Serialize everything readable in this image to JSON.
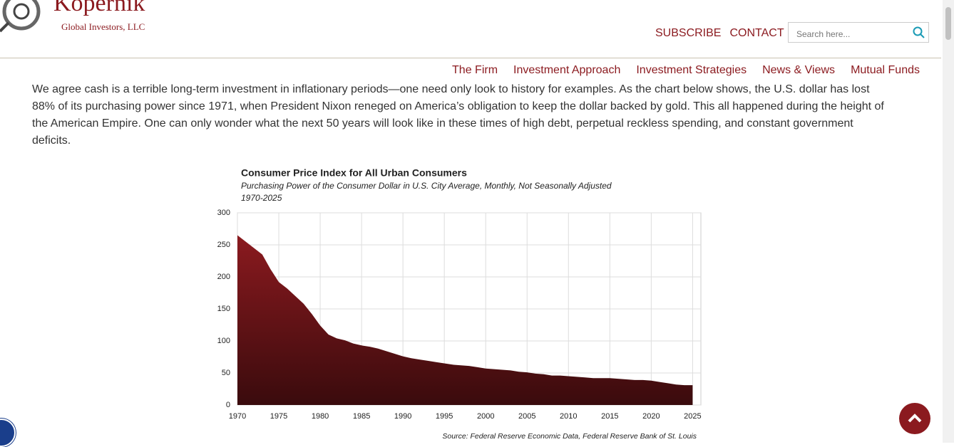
{
  "header": {
    "brand": "Kopernik",
    "tagline": "Global Investors, LLC",
    "top_links": [
      "SUBSCRIBE",
      "CONTACT"
    ],
    "search_placeholder": "Search here..."
  },
  "nav": [
    "The Firm",
    "Investment Approach",
    "Investment Strategies",
    "News & Views",
    "Mutual Funds"
  ],
  "paragraph": "We agree cash is a terrible long-term investment in inflationary periods—one need only look to history for examples. As the chart below shows, the U.S. dollar has lost 88% of its purchasing power since 1971, when President Nixon reneged on America’s obligation to keep the dollar backed by gold. This all happened during the height of the American Empire. One can only wonder what the next 50 years will look like in these times of high debt, perpetual reckless spending, and constant government deficits.",
  "chart_data": {
    "type": "area",
    "title": "Consumer Price Index for All Urban Consumers",
    "subtitle": "Purchasing Power of the Consumer Dollar in U.S. City Average, Monthly, Not Seasonally Adjusted",
    "period": "1970-2025",
    "source": "Source: Federal Reserve Economic Data, Federal Reserve Bank of St. Louis",
    "color": "#8b1a1f",
    "grid": true,
    "x": [
      1970,
      1971,
      1972,
      1973,
      1974,
      1975,
      1976,
      1977,
      1978,
      1979,
      1980,
      1981,
      1982,
      1983,
      1984,
      1985,
      1986,
      1987,
      1988,
      1989,
      1990,
      1991,
      1992,
      1993,
      1994,
      1995,
      1996,
      1997,
      1998,
      1999,
      2000,
      2001,
      2002,
      2003,
      2004,
      2005,
      2006,
      2007,
      2008,
      2009,
      2010,
      2011,
      2012,
      2013,
      2014,
      2015,
      2016,
      2017,
      2018,
      2019,
      2020,
      2021,
      2022,
      2023,
      2024,
      2025
    ],
    "values": [
      265,
      255,
      245,
      235,
      212,
      192,
      182,
      170,
      158,
      142,
      124,
      110,
      104,
      101,
      96,
      93,
      91,
      88,
      84,
      80,
      76,
      73,
      71,
      69,
      67,
      65,
      63,
      62,
      61,
      59,
      57,
      56,
      55,
      54,
      52,
      51,
      49,
      48,
      46,
      46,
      45,
      44,
      43,
      42,
      42,
      42,
      41,
      40,
      39,
      39,
      38,
      36,
      34,
      32,
      31,
      31
    ],
    "xlim": [
      1970,
      2026
    ],
    "xticks": [
      1970,
      1975,
      1980,
      1985,
      1990,
      1995,
      2000,
      2005,
      2010,
      2015,
      2020,
      2025
    ],
    "ylim": [
      0,
      300
    ],
    "yticks": [
      0,
      50,
      100,
      150,
      200,
      250,
      300
    ]
  }
}
